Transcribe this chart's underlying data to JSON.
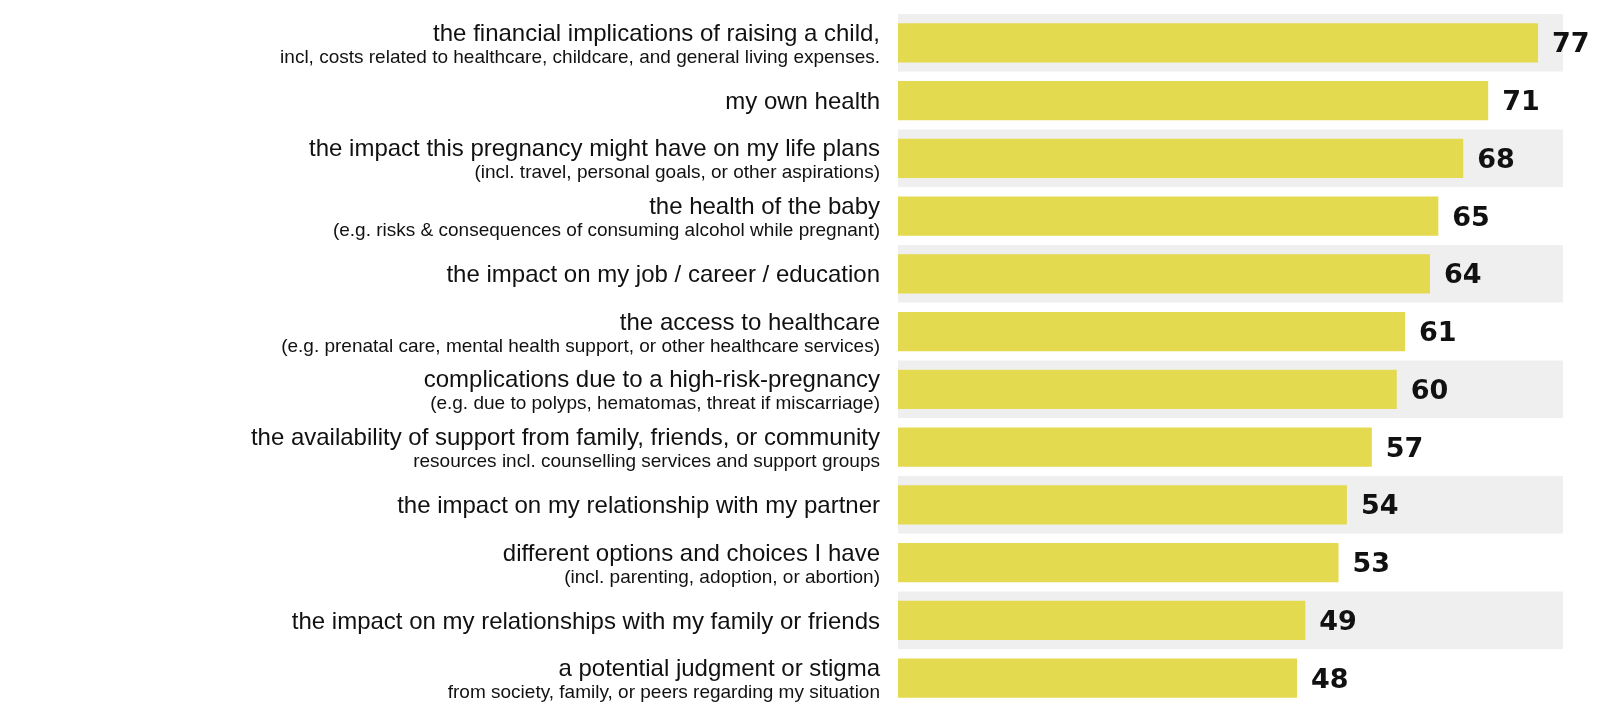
{
  "chart_data": {
    "type": "bar",
    "orientation": "horizontal",
    "data_labels": true,
    "color": "#e3da4f",
    "categories": [
      "the financial implications of raising a child,\nincl, costs related to healthcare, childcare, and general living expenses.",
      "my own health",
      "the impact this pregnancy might have on my life plans\n(incl. travel, personal goals, or other aspirations)",
      "the health of the baby\n(e.g. risks & consequences of consuming alcohol while pregnant)",
      "the impact on my job / career / education",
      "the access to healthcare\n(e.g. prenatal care, mental health support, or other healthcare services)",
      "complications due to a high-risk-pregnancy\n(e.g. due to polyps, hematomas, threat if miscarriage)",
      "the availability of support from family, friends, or community\nresources incl. counselling services and support groups",
      "the impact on my relationship with my partner",
      "different options and choices I have\n(incl. parenting, adoption, or abortion)",
      "the impact on my relationships with my family or friends",
      "a potential judgment or stigma\nfrom society, family, or peers regarding my situation"
    ],
    "values": [
      77,
      71,
      68,
      65,
      64,
      61,
      60,
      57,
      54,
      53,
      49,
      48
    ]
  }
}
